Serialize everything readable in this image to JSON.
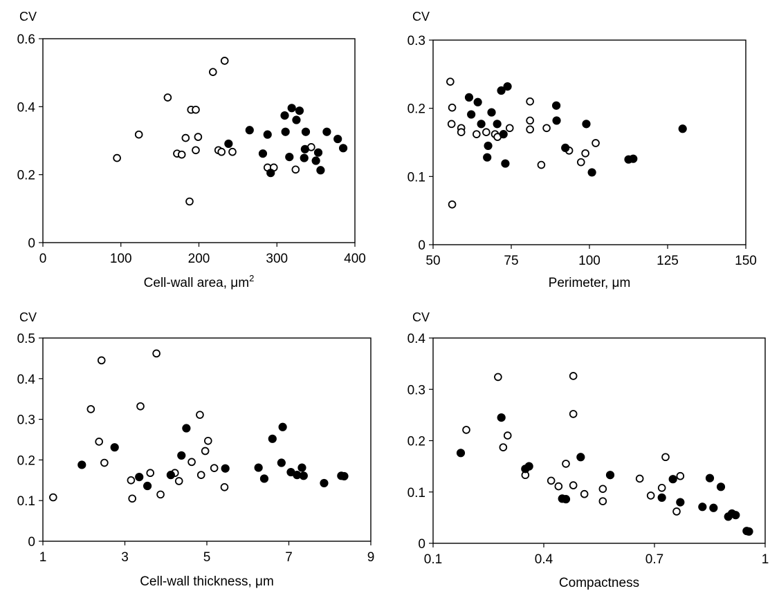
{
  "chart_data": [
    {
      "type": "scatter",
      "ylabel": "CV",
      "xlabel": "Cell-wall area, μm",
      "xlabel_superscript": "2",
      "xlim": [
        0,
        400
      ],
      "ylim": [
        0,
        0.6
      ],
      "x_ticks": [
        0,
        100,
        200,
        300,
        400
      ],
      "y_ticks": [
        0,
        0.2,
        0.4,
        0.6
      ],
      "x_tick_labels": [
        "0",
        "100",
        "200",
        "300",
        "400"
      ],
      "y_tick_labels": [
        "0",
        "0.2",
        "0.4",
        "0.6"
      ],
      "grid": false,
      "series": [
        {
          "marker": "open-circle",
          "points": [
            [
              95,
              0.249
            ],
            [
              123,
              0.318
            ],
            [
              160,
              0.427
            ],
            [
              172,
              0.262
            ],
            [
              178,
              0.259
            ],
            [
              183,
              0.308
            ],
            [
              188,
              0.121
            ],
            [
              190,
              0.391
            ],
            [
              196,
              0.391
            ],
            [
              196,
              0.272
            ],
            [
              199,
              0.311
            ],
            [
              218,
              0.502
            ],
            [
              225,
              0.272
            ],
            [
              229,
              0.267
            ],
            [
              233,
              0.535
            ],
            [
              243,
              0.267
            ],
            [
              288,
              0.221
            ],
            [
              296,
              0.221
            ],
            [
              324,
              0.215
            ],
            [
              344,
              0.281
            ]
          ]
        },
        {
          "marker": "filled-circle",
          "points": [
            [
              238,
              0.291
            ],
            [
              265,
              0.331
            ],
            [
              282,
              0.262
            ],
            [
              288,
              0.318
            ],
            [
              292,
              0.205
            ],
            [
              310,
              0.374
            ],
            [
              311,
              0.326
            ],
            [
              316,
              0.252
            ],
            [
              319,
              0.396
            ],
            [
              325,
              0.361
            ],
            [
              329,
              0.388
            ],
            [
              335,
              0.249
            ],
            [
              336,
              0.275
            ],
            [
              337,
              0.326
            ],
            [
              350,
              0.241
            ],
            [
              353,
              0.265
            ],
            [
              356,
              0.213
            ],
            [
              364,
              0.326
            ],
            [
              378,
              0.305
            ],
            [
              385,
              0.278
            ]
          ]
        }
      ]
    },
    {
      "type": "scatter",
      "ylabel": "CV",
      "xlabel": "Perimeter, μm",
      "xlim": [
        50,
        150
      ],
      "ylim": [
        0,
        0.3
      ],
      "x_ticks": [
        50,
        75,
        100,
        125,
        150
      ],
      "y_ticks": [
        0,
        0.1,
        0.2,
        0.3
      ],
      "x_tick_labels": [
        "50",
        "75",
        "100",
        "125",
        "150"
      ],
      "y_tick_labels": [
        "0",
        "0.1",
        "0.2",
        "0.3"
      ],
      "grid": false,
      "series": [
        {
          "marker": "open-circle",
          "points": [
            [
              55.5,
              0.239
            ],
            [
              55.9,
              0.177
            ],
            [
              56.1,
              0.201
            ],
            [
              56.1,
              0.059
            ],
            [
              59,
              0.171
            ],
            [
              59,
              0.165
            ],
            [
              63.9,
              0.162
            ],
            [
              67,
              0.165
            ],
            [
              69.8,
              0.162
            ],
            [
              70.6,
              0.158
            ],
            [
              74.5,
              0.171
            ],
            [
              81,
              0.21
            ],
            [
              81,
              0.182
            ],
            [
              81,
              0.169
            ],
            [
              84.6,
              0.117
            ],
            [
              86.3,
              0.171
            ],
            [
              93.5,
              0.138
            ],
            [
              97.3,
              0.121
            ],
            [
              98.7,
              0.134
            ],
            [
              102,
              0.149
            ]
          ]
        },
        {
          "marker": "filled-circle",
          "points": [
            [
              61.5,
              0.216
            ],
            [
              62.2,
              0.191
            ],
            [
              64.3,
              0.209
            ],
            [
              65.4,
              0.177
            ],
            [
              67.3,
              0.128
            ],
            [
              67.6,
              0.145
            ],
            [
              68.7,
              0.194
            ],
            [
              70.5,
              0.177
            ],
            [
              71.8,
              0.226
            ],
            [
              72.5,
              0.162
            ],
            [
              73.1,
              0.119
            ],
            [
              73.8,
              0.232
            ],
            [
              89.4,
              0.204
            ],
            [
              89.5,
              0.182
            ],
            [
              92.3,
              0.142
            ],
            [
              99,
              0.177
            ],
            [
              100.8,
              0.106
            ],
            [
              112.5,
              0.125
            ],
            [
              114,
              0.126
            ],
            [
              129.8,
              0.17
            ]
          ]
        }
      ]
    },
    {
      "type": "scatter",
      "ylabel": "CV",
      "xlabel": "Cell-wall thickness, μm",
      "xlim": [
        1,
        9
      ],
      "ylim": [
        0,
        0.5
      ],
      "x_ticks": [
        1,
        3,
        5,
        7,
        9
      ],
      "y_ticks": [
        0,
        0.1,
        0.2,
        0.3,
        0.4,
        0.5
      ],
      "x_tick_labels": [
        "1",
        "3",
        "5",
        "7",
        "9"
      ],
      "y_tick_labels": [
        "0",
        "0.1",
        "0.2",
        "0.3",
        "0.4",
        "0.5"
      ],
      "grid": false,
      "series": [
        {
          "marker": "open-circle",
          "points": [
            [
              1.25,
              0.108
            ],
            [
              2.17,
              0.325
            ],
            [
              2.37,
              0.245
            ],
            [
              2.43,
              0.445
            ],
            [
              2.5,
              0.193
            ],
            [
              3.15,
              0.15
            ],
            [
              3.18,
              0.105
            ],
            [
              3.38,
              0.332
            ],
            [
              3.62,
              0.168
            ],
            [
              3.77,
              0.462
            ],
            [
              3.87,
              0.115
            ],
            [
              4.22,
              0.168
            ],
            [
              4.32,
              0.148
            ],
            [
              4.63,
              0.195
            ],
            [
              4.83,
              0.311
            ],
            [
              4.86,
              0.163
            ],
            [
              4.96,
              0.222
            ],
            [
              5.03,
              0.247
            ],
            [
              5.18,
              0.18
            ],
            [
              5.43,
              0.133
            ]
          ]
        },
        {
          "marker": "filled-circle",
          "points": [
            [
              1.95,
              0.188
            ],
            [
              2.75,
              0.231
            ],
            [
              3.35,
              0.158
            ],
            [
              3.55,
              0.136
            ],
            [
              4.12,
              0.163
            ],
            [
              4.38,
              0.211
            ],
            [
              4.5,
              0.278
            ],
            [
              5.45,
              0.179
            ],
            [
              6.26,
              0.181
            ],
            [
              6.4,
              0.154
            ],
            [
              6.6,
              0.252
            ],
            [
              6.82,
              0.193
            ],
            [
              6.85,
              0.281
            ],
            [
              7.05,
              0.17
            ],
            [
              7.2,
              0.163
            ],
            [
              7.32,
              0.181
            ],
            [
              7.36,
              0.161
            ],
            [
              7.86,
              0.143
            ],
            [
              8.28,
              0.161
            ],
            [
              8.35,
              0.16
            ]
          ]
        }
      ]
    },
    {
      "type": "scatter",
      "ylabel": "CV",
      "xlabel": "Compactness",
      "xlim": [
        0.1,
        1
      ],
      "ylim": [
        0,
        0.4
      ],
      "x_ticks": [
        0.1,
        0.4,
        0.7,
        1
      ],
      "y_ticks": [
        0,
        0.1,
        0.2,
        0.3,
        0.4
      ],
      "x_tick_labels": [
        "0.1",
        "0.4",
        "0.7",
        "1"
      ],
      "y_tick_labels": [
        "0",
        "0.1",
        "0.2",
        "0.3",
        "0.4"
      ],
      "grid": false,
      "series": [
        {
          "marker": "open-circle",
          "points": [
            [
              0.19,
              0.221
            ],
            [
              0.276,
              0.324
            ],
            [
              0.29,
              0.187
            ],
            [
              0.302,
              0.21
            ],
            [
              0.35,
              0.133
            ],
            [
              0.42,
              0.122
            ],
            [
              0.44,
              0.111
            ],
            [
              0.46,
              0.155
            ],
            [
              0.48,
              0.326
            ],
            [
              0.48,
              0.252
            ],
            [
              0.48,
              0.113
            ],
            [
              0.51,
              0.096
            ],
            [
              0.56,
              0.106
            ],
            [
              0.56,
              0.082
            ],
            [
              0.66,
              0.126
            ],
            [
              0.69,
              0.093
            ],
            [
              0.72,
              0.108
            ],
            [
              0.73,
              0.168
            ],
            [
              0.76,
              0.062
            ],
            [
              0.77,
              0.131
            ]
          ]
        },
        {
          "marker": "filled-circle",
          "points": [
            [
              0.175,
              0.176
            ],
            [
              0.285,
              0.245
            ],
            [
              0.35,
              0.145
            ],
            [
              0.36,
              0.15
            ],
            [
              0.45,
              0.087
            ],
            [
              0.46,
              0.086
            ],
            [
              0.5,
              0.168
            ],
            [
              0.58,
              0.133
            ],
            [
              0.72,
              0.089
            ],
            [
              0.75,
              0.125
            ],
            [
              0.77,
              0.08
            ],
            [
              0.83,
              0.071
            ],
            [
              0.85,
              0.127
            ],
            [
              0.86,
              0.069
            ],
            [
              0.88,
              0.11
            ],
            [
              0.9,
              0.052
            ],
            [
              0.91,
              0.058
            ],
            [
              0.92,
              0.055
            ],
            [
              0.95,
              0.024
            ],
            [
              0.956,
              0.023
            ]
          ]
        }
      ]
    }
  ]
}
